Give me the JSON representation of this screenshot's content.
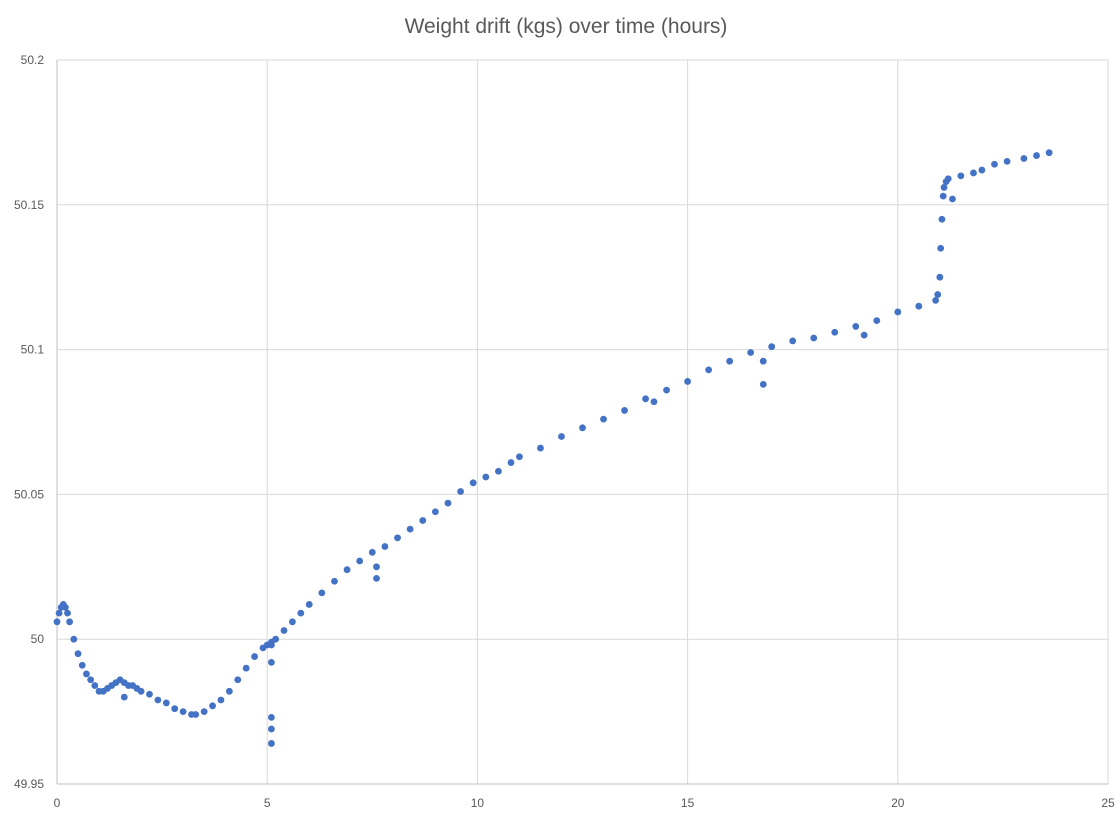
{
  "chart_data": {
    "type": "scatter",
    "title": "Weight drift (kgs) over time (hours)",
    "xlabel": "",
    "ylabel": "",
    "xlim": [
      0,
      25
    ],
    "ylim": [
      49.95,
      50.2
    ],
    "x_ticks": [
      "0",
      "5",
      "10",
      "15",
      "20",
      "25"
    ],
    "y_ticks": [
      "49.95",
      "50",
      "50.05",
      "50.1",
      "50.15",
      "50.2"
    ],
    "grid": true,
    "legend": "none",
    "marker_color": "#4472C4",
    "series": [
      {
        "x": [
          0.0,
          0.05,
          0.1,
          0.15,
          0.2,
          0.25,
          0.3,
          0.4,
          0.5,
          0.6,
          0.7,
          0.8,
          0.9,
          1.0,
          1.1,
          1.2,
          1.3,
          1.4,
          1.5,
          1.6,
          1.7,
          1.8,
          1.9,
          2.0,
          2.2,
          2.4,
          2.6,
          2.8,
          3.0,
          3.2,
          3.3,
          3.5,
          3.7,
          3.9,
          4.1,
          4.3,
          4.5,
          4.7,
          4.9,
          5.0,
          5.2,
          5.4,
          5.6,
          5.8,
          6.0,
          6.3,
          6.6,
          6.9,
          7.2,
          7.5,
          7.8,
          8.1,
          8.4,
          8.7,
          9.0,
          9.3,
          9.6,
          9.9,
          10.2,
          10.5,
          10.8,
          11.0,
          11.5,
          12.0,
          12.5,
          13.0,
          13.5,
          14.0,
          14.5,
          15.0,
          15.5,
          16.0,
          16.5,
          17.0,
          17.5,
          18.0,
          18.5,
          19.0,
          19.5,
          20.0,
          20.5,
          20.9,
          20.95,
          21.0,
          21.02,
          21.05,
          21.08,
          21.1,
          21.15,
          21.2,
          21.5,
          21.8,
          22.0,
          22.3,
          22.6,
          23.0,
          23.3,
          23.6,
          5.1,
          5.1,
          5.1,
          5.1,
          5.1,
          5.1,
          7.6,
          7.6,
          16.8,
          16.8,
          14.2,
          19.2,
          1.6,
          21.3
        ],
        "y": [
          50.006,
          50.009,
          50.011,
          50.012,
          50.011,
          50.009,
          50.006,
          50.0,
          49.995,
          49.991,
          49.988,
          49.986,
          49.984,
          49.982,
          49.982,
          49.983,
          49.984,
          49.985,
          49.986,
          49.985,
          49.984,
          49.984,
          49.983,
          49.982,
          49.981,
          49.979,
          49.978,
          49.976,
          49.975,
          49.974,
          49.974,
          49.975,
          49.977,
          49.979,
          49.982,
          49.986,
          49.99,
          49.994,
          49.997,
          49.998,
          50.0,
          50.003,
          50.006,
          50.009,
          50.012,
          50.016,
          50.02,
          50.024,
          50.027,
          50.03,
          50.032,
          50.035,
          50.038,
          50.041,
          50.044,
          50.047,
          50.051,
          50.054,
          50.056,
          50.058,
          50.061,
          50.063,
          50.066,
          50.07,
          50.073,
          50.076,
          50.079,
          50.083,
          50.086,
          50.089,
          50.093,
          50.096,
          50.099,
          50.101,
          50.103,
          50.104,
          50.106,
          50.108,
          50.11,
          50.113,
          50.115,
          50.117,
          50.119,
          50.125,
          50.135,
          50.145,
          50.153,
          50.156,
          50.158,
          50.159,
          50.16,
          50.161,
          50.162,
          50.164,
          50.165,
          50.166,
          50.167,
          50.168,
          49.999,
          49.998,
          49.992,
          49.973,
          49.969,
          49.964,
          50.025,
          50.021,
          50.096,
          50.088,
          50.082,
          50.105,
          49.98,
          50.152
        ]
      }
    ]
  }
}
